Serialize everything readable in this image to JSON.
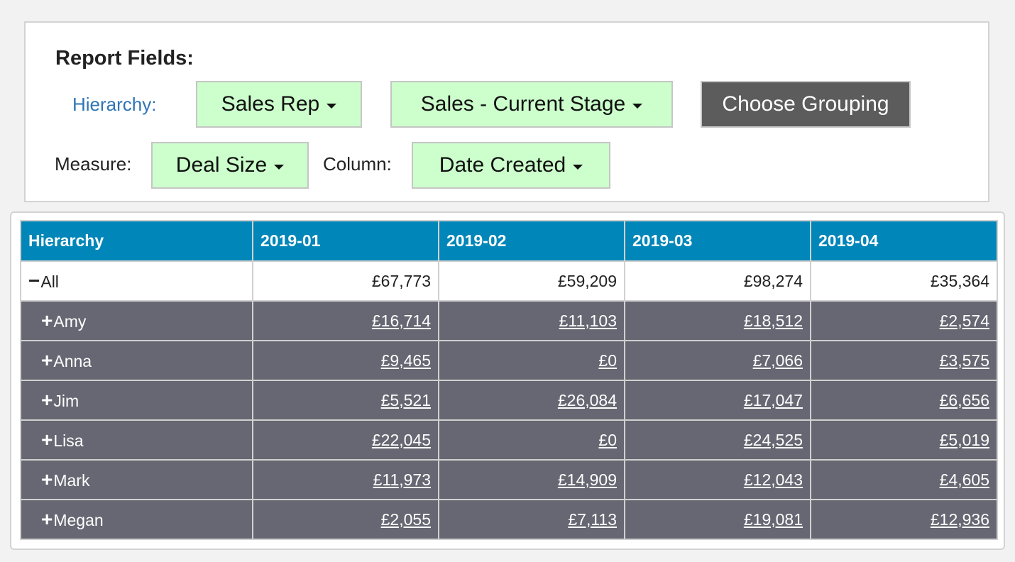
{
  "report_fields": {
    "title": "Report Fields:",
    "hierarchy_label": "Hierarchy:",
    "hierarchy_fields": [
      "Sales Rep",
      "Sales - Current Stage"
    ],
    "grouping_button": "Choose Grouping",
    "measure_label": "Measure:",
    "measure_value": "Deal Size",
    "column_label": "Column:",
    "column_value": "Date Created"
  },
  "colors": {
    "dropdown_bg": "#ccffcc",
    "header_bg": "#0086b8",
    "rep_row_bg": "#676773",
    "hierarchy_label": "#2f74b5",
    "grouping_bg": "#5c5c5c"
  },
  "icons": {
    "dropdown": "caret-down-icon",
    "collapse": "minus-icon",
    "expand": "plus-icon"
  },
  "table": {
    "headers": [
      "Hierarchy",
      "2019-01",
      "2019-02",
      "2019-03",
      "2019-04"
    ],
    "total": {
      "toggle": "−",
      "name": "All",
      "values": [
        "£67,773",
        "£59,209",
        "£98,274",
        "£35,364"
      ]
    },
    "rows": [
      {
        "toggle": "+",
        "name": "Amy",
        "values": [
          "£16,714",
          "£11,103",
          "£18,512",
          "£2,574"
        ]
      },
      {
        "toggle": "+",
        "name": "Anna",
        "values": [
          "£9,465",
          "£0",
          "£7,066",
          "£3,575"
        ]
      },
      {
        "toggle": "+",
        "name": "Jim",
        "values": [
          "£5,521",
          "£26,084",
          "£17,047",
          "£6,656"
        ]
      },
      {
        "toggle": "+",
        "name": "Lisa",
        "values": [
          "£22,045",
          "£0",
          "£24,525",
          "£5,019"
        ]
      },
      {
        "toggle": "+",
        "name": "Mark",
        "values": [
          "£11,973",
          "£14,909",
          "£12,043",
          "£4,605"
        ]
      },
      {
        "toggle": "+",
        "name": "Megan",
        "values": [
          "£2,055",
          "£7,113",
          "£19,081",
          "£12,936"
        ]
      }
    ]
  }
}
